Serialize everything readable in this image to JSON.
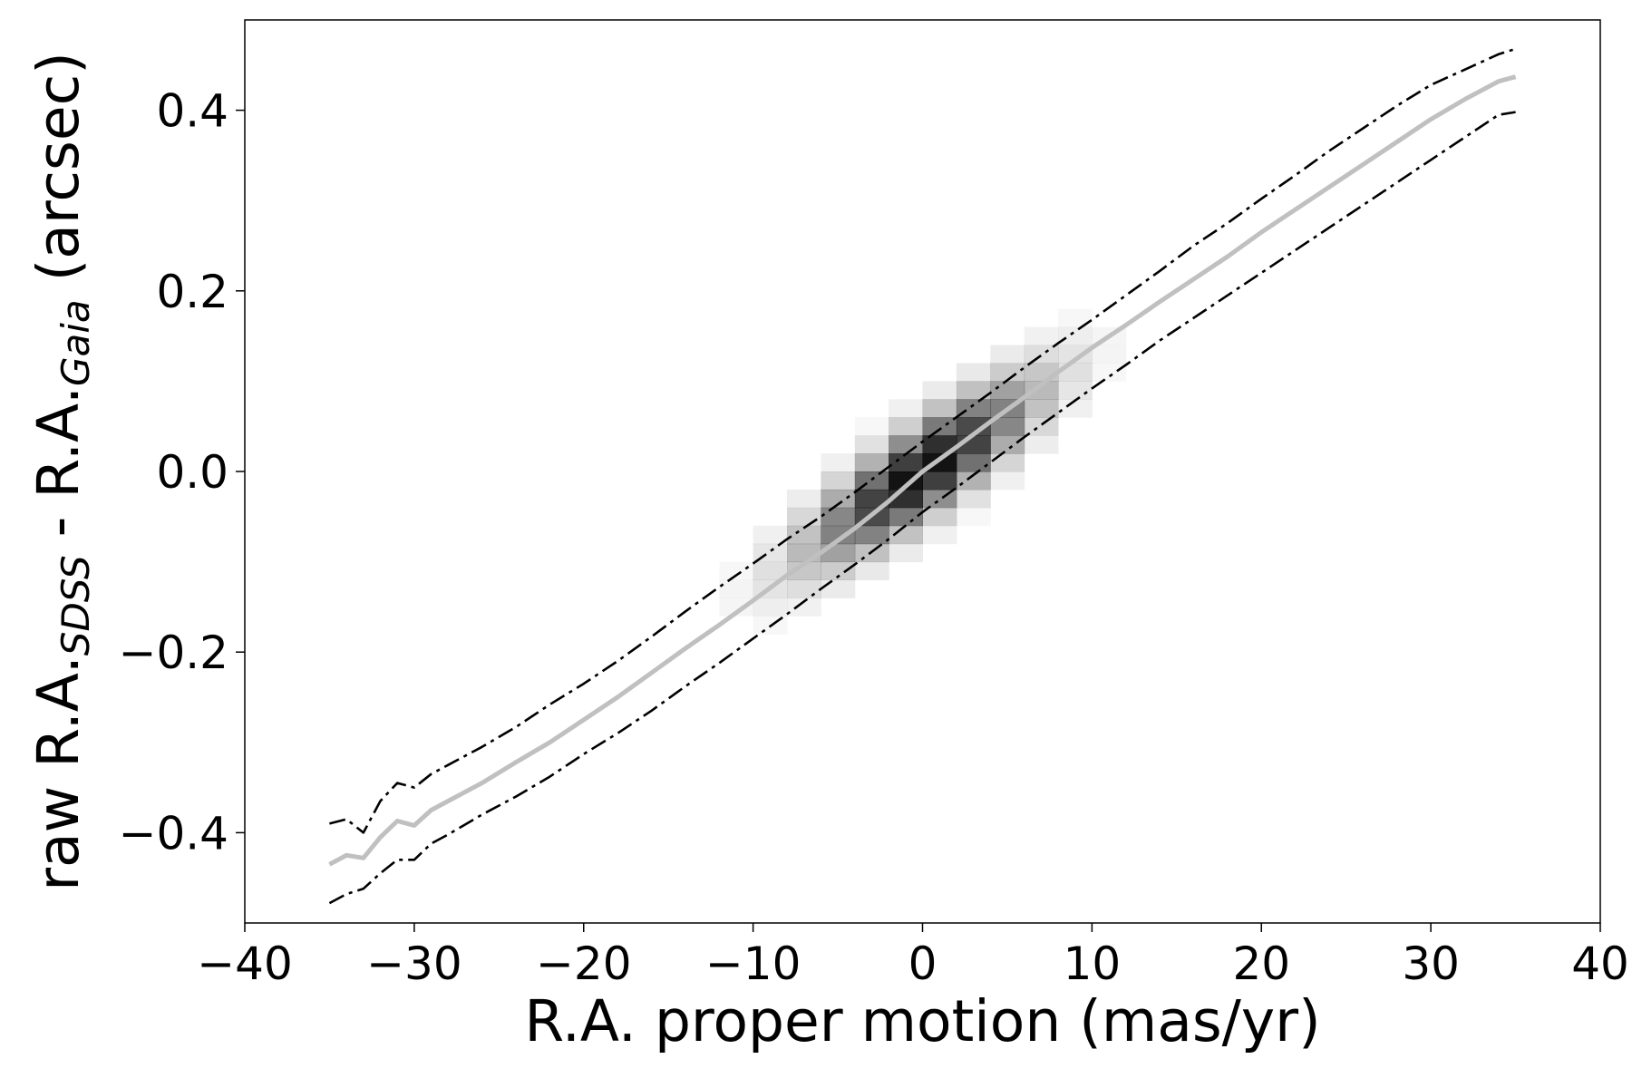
{
  "chart_data": {
    "type": "heatmap",
    "title": "",
    "xlabel": "R.A. proper motion (mas/yr)",
    "ylabel": {
      "prefix": "raw R.A.",
      "sub1": "SDSS",
      "middle": " - R.A.",
      "sub2": "Gaia",
      "suffix": " (arcsec)"
    },
    "xlim": [
      -40,
      40
    ],
    "ylim": [
      -0.5,
      0.5
    ],
    "x_ticks": [
      -40,
      -30,
      -20,
      -10,
      0,
      10,
      20,
      30,
      40
    ],
    "x_tick_labels": [
      "−40",
      "−30",
      "−20",
      "−10",
      "0",
      "10",
      "20",
      "30",
      "40"
    ],
    "y_ticks": [
      -0.4,
      -0.2,
      0.0,
      0.2,
      0.4
    ],
    "y_tick_labels": [
      "−0.4",
      "−0.2",
      "0.0",
      "0.2",
      "0.4"
    ],
    "grid": false,
    "colors": {
      "density": "#000000",
      "median_line": "#c0c0c0",
      "bounds_line": "#000000"
    },
    "density": {
      "description_free": true,
      "slope": 0.0125,
      "x_bin": 2,
      "y_bin": 0.02,
      "x_range": [
        -16,
        16
      ],
      "peak_sigma_x": 3.5,
      "core_width": 0.035
    },
    "series": [
      {
        "name": "",
        "style": "solid",
        "x": [
          -35,
          -34,
          -33,
          -32,
          -31,
          -30,
          -29,
          -28,
          -26,
          -24,
          -22,
          -20,
          -18,
          -16,
          -14,
          -12,
          -10,
          -8,
          -6,
          -4,
          -2,
          0,
          2,
          4,
          6,
          8,
          10,
          12,
          14,
          16,
          18,
          20,
          22,
          24,
          26,
          28,
          30,
          32,
          34,
          35
        ],
        "y": [
          -0.435,
          -0.425,
          -0.428,
          -0.405,
          -0.387,
          -0.392,
          -0.375,
          -0.365,
          -0.345,
          -0.322,
          -0.3,
          -0.275,
          -0.25,
          -0.223,
          -0.196,
          -0.17,
          -0.143,
          -0.115,
          -0.09,
          -0.063,
          -0.033,
          0.0,
          0.027,
          0.055,
          0.082,
          0.11,
          0.137,
          0.162,
          0.188,
          0.213,
          0.238,
          0.265,
          0.29,
          0.315,
          0.34,
          0.365,
          0.39,
          0.412,
          0.432,
          0.437
        ]
      },
      {
        "name": "",
        "style": "dashdot",
        "x": [
          -35,
          -34,
          -33,
          -32,
          -31,
          -30,
          -29,
          -28,
          -26,
          -24,
          -22,
          -20,
          -18,
          -16,
          -14,
          -12,
          -10,
          -8,
          -6,
          -4,
          -2,
          0,
          2,
          4,
          6,
          8,
          10,
          12,
          14,
          16,
          18,
          20,
          22,
          24,
          26,
          28,
          30,
          32,
          34,
          35
        ],
        "y": [
          -0.39,
          -0.385,
          -0.4,
          -0.365,
          -0.345,
          -0.35,
          -0.335,
          -0.325,
          -0.305,
          -0.283,
          -0.258,
          -0.235,
          -0.21,
          -0.183,
          -0.155,
          -0.128,
          -0.102,
          -0.075,
          -0.05,
          -0.023,
          0.005,
          0.033,
          0.06,
          0.087,
          0.115,
          0.142,
          0.168,
          0.195,
          0.222,
          0.25,
          0.275,
          0.302,
          0.328,
          0.355,
          0.38,
          0.405,
          0.428,
          0.445,
          0.462,
          0.468
        ]
      },
      {
        "name": "",
        "style": "dashdot",
        "x": [
          -35,
          -34,
          -33,
          -32,
          -31,
          -30,
          -29,
          -28,
          -26,
          -24,
          -22,
          -20,
          -18,
          -16,
          -14,
          -12,
          -10,
          -8,
          -6,
          -4,
          -2,
          0,
          2,
          4,
          6,
          8,
          10,
          12,
          14,
          16,
          18,
          20,
          22,
          24,
          26,
          28,
          30,
          32,
          34,
          35
        ],
        "y": [
          -0.478,
          -0.468,
          -0.462,
          -0.445,
          -0.43,
          -0.43,
          -0.412,
          -0.402,
          -0.38,
          -0.36,
          -0.338,
          -0.313,
          -0.29,
          -0.265,
          -0.238,
          -0.212,
          -0.185,
          -0.158,
          -0.13,
          -0.103,
          -0.075,
          -0.045,
          -0.018,
          0.01,
          0.038,
          0.065,
          0.092,
          0.118,
          0.145,
          0.17,
          0.195,
          0.22,
          0.245,
          0.27,
          0.295,
          0.32,
          0.345,
          0.37,
          0.395,
          0.398
        ]
      }
    ]
  }
}
